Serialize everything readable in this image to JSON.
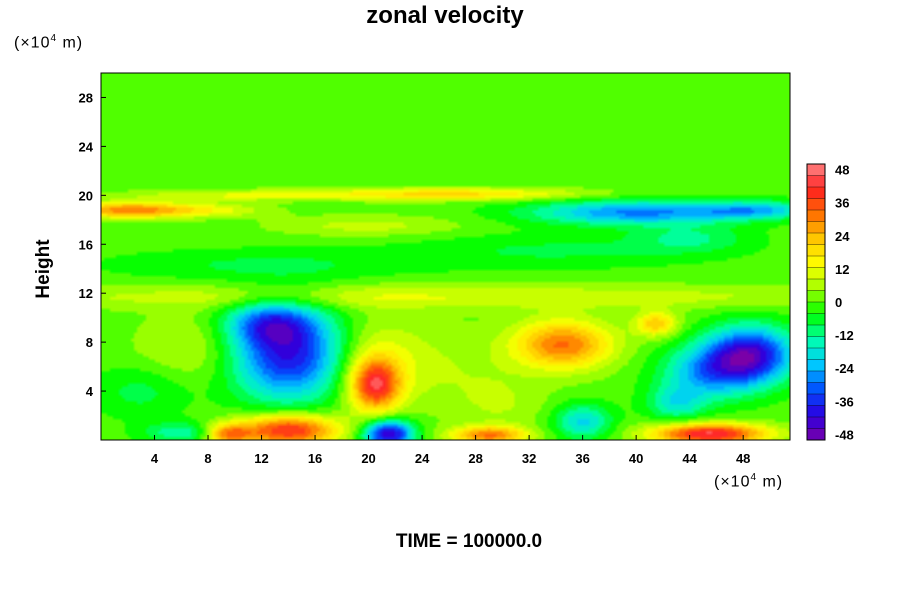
{
  "chart_data": {
    "type": "heatmap",
    "title": "zonal velocity",
    "ylabel": "Height",
    "xlabel": "",
    "y_unit": {
      "prefix": "(×10",
      "exp": "4",
      "suffix": " m)"
    },
    "x_unit": {
      "prefix": "(×10",
      "exp": "4",
      "suffix": " m)"
    },
    "annotation": "TIME = 100000.0",
    "xlim": [
      0,
      51.5
    ],
    "ylim": [
      0,
      30
    ],
    "x_ticks": [
      4,
      8,
      12,
      16,
      20,
      24,
      28,
      32,
      36,
      40,
      44,
      48
    ],
    "y_ticks": [
      4,
      8,
      12,
      16,
      20,
      24,
      28
    ],
    "colorbar": {
      "range": [
        -50,
        50
      ],
      "ticks": [
        48,
        36,
        24,
        12,
        0,
        -12,
        -24,
        -36,
        -48
      ],
      "colors": [
        "#7a00a8",
        "#2a00e0",
        "#0050ff",
        "#00c8ff",
        "#00ffb0",
        "#00ff00",
        "#a0ff00",
        "#ffff00",
        "#ffc800",
        "#ff7000",
        "#ff2020",
        "#ff8888"
      ]
    },
    "background_value": 0,
    "features": [
      {
        "x": 14,
        "y": 7,
        "sx": 3.0,
        "sy": 2.6,
        "v": -40
      },
      {
        "x": 12.5,
        "y": 9.5,
        "sx": 2.2,
        "sy": 1.2,
        "v": -22
      },
      {
        "x": 20.5,
        "y": 4.5,
        "sx": 1.3,
        "sy": 1.5,
        "v": 38
      },
      {
        "x": 20.5,
        "y": 6.5,
        "sx": 2.5,
        "sy": 2.5,
        "v": 12
      },
      {
        "x": 34.5,
        "y": 7.8,
        "sx": 2.6,
        "sy": 1.4,
        "v": 32
      },
      {
        "x": 41.5,
        "y": 9.5,
        "sx": 1.1,
        "sy": 0.7,
        "v": 22
      },
      {
        "x": 48.5,
        "y": 7.0,
        "sx": 2.3,
        "sy": 1.6,
        "v": -42
      },
      {
        "x": 45.5,
        "y": 5.5,
        "sx": 2.5,
        "sy": 1.5,
        "v": -24
      },
      {
        "x": 43.0,
        "y": 3.0,
        "sx": 1.5,
        "sy": 1.0,
        "v": -16
      },
      {
        "x": 14.0,
        "y": 0.8,
        "sx": 2.6,
        "sy": 0.9,
        "v": 42
      },
      {
        "x": 9.5,
        "y": 0.5,
        "sx": 1.2,
        "sy": 0.6,
        "v": 28
      },
      {
        "x": 21.5,
        "y": 0.5,
        "sx": 1.3,
        "sy": 0.8,
        "v": -45
      },
      {
        "x": 29.0,
        "y": 0.4,
        "sx": 2.0,
        "sy": 0.5,
        "v": 30
      },
      {
        "x": 45.5,
        "y": 0.5,
        "sx": 3.0,
        "sy": 0.6,
        "v": 45
      },
      {
        "x": 6.0,
        "y": 0.6,
        "sx": 2.0,
        "sy": 0.6,
        "v": -14
      },
      {
        "x": 7.0,
        "y": 7.5,
        "sx": 3.0,
        "sy": 2.0,
        "v": 8
      },
      {
        "x": 26.0,
        "y": 6.0,
        "sx": 3.0,
        "sy": 2.5,
        "v": 5
      },
      {
        "x": 30.0,
        "y": 3.0,
        "sx": 2.5,
        "sy": 1.8,
        "v": 6
      },
      {
        "x": 36.0,
        "y": 1.5,
        "sx": 1.5,
        "sy": 1.0,
        "v": -20
      },
      {
        "x": 2.0,
        "y": 18.8,
        "sx": 3.0,
        "sy": 0.45,
        "v": 30
      },
      {
        "x": 8.0,
        "y": 18.8,
        "sx": 3.0,
        "sy": 0.4,
        "v": 12
      },
      {
        "x": 40.0,
        "y": 18.6,
        "sx": 5.5,
        "sy": 0.7,
        "v": -28
      },
      {
        "x": 49.0,
        "y": 18.8,
        "sx": 3.0,
        "sy": 0.5,
        "v": -20
      },
      {
        "x": 26.0,
        "y": 20.1,
        "sx": 7.0,
        "sy": 0.35,
        "v": 20
      },
      {
        "x": 10.0,
        "y": 20.0,
        "sx": 6.0,
        "sy": 0.3,
        "v": 10
      },
      {
        "x": 25.0,
        "y": 11.7,
        "sx": 25.0,
        "sy": 0.7,
        "v": 10
      },
      {
        "x": 12.0,
        "y": 14.3,
        "sx": 8.0,
        "sy": 0.9,
        "v": -7
      },
      {
        "x": 34.0,
        "y": 15.5,
        "sx": 8.0,
        "sy": 1.0,
        "v": -7
      },
      {
        "x": 44.0,
        "y": 16.5,
        "sx": 3.0,
        "sy": 0.8,
        "v": -10
      },
      {
        "x": 20.0,
        "y": 17.5,
        "sx": 5.0,
        "sy": 0.6,
        "v": 8
      },
      {
        "x": 3.0,
        "y": 4.0,
        "sx": 2.5,
        "sy": 1.5,
        "v": -8
      }
    ]
  }
}
